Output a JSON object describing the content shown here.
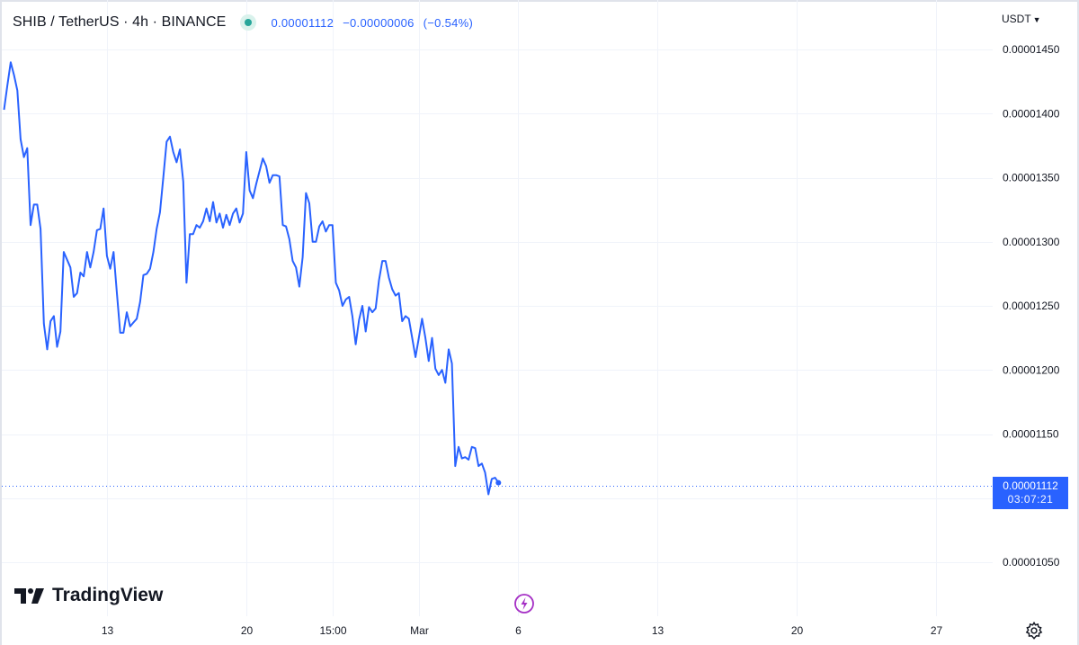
{
  "header": {
    "symbol_title": "SHIB / TetherUS · 4h · BINANCE",
    "last_price": "0.00001112",
    "change": "−0.00000006",
    "change_pct": "(−0.54%)",
    "status_color": "#26a69a"
  },
  "currency_menu": {
    "label": "USDT",
    "icon": "chevron-down-icon"
  },
  "price_tag": {
    "price": "0.00001112",
    "countdown": "03:07:21",
    "color": "#2962ff"
  },
  "logo": {
    "text": "TradingView"
  },
  "icons": {
    "flash": "lightning-icon",
    "settings": "gear-icon"
  },
  "chart_data": {
    "type": "line",
    "title": "",
    "xlabel": "",
    "ylabel": "",
    "line_color": "#2962ff",
    "ylim": [
      1.02e-05,
      1.46e-05
    ],
    "y_ticks": [
      "0.00001450",
      "0.00001400",
      "0.00001350",
      "0.00001300",
      "0.00001250",
      "0.00001200",
      "0.00001150",
      "0.00001050"
    ],
    "x_ticks": [
      {
        "label": "13",
        "index": 31
      },
      {
        "label": "20",
        "index": 73
      },
      {
        "label": "15:00",
        "index": 99
      },
      {
        "label": "Mar",
        "index": 125
      },
      {
        "label": "6",
        "index": 155
      },
      {
        "label": "13",
        "index": 197
      },
      {
        "label": "20",
        "index": 239
      },
      {
        "label": "27",
        "index": 281
      }
    ],
    "x_index_range": [
      -1,
      292
    ],
    "last_value": 1.112e-05,
    "grid": true,
    "series": [
      {
        "values": [
          1.403e-05,
          1.422e-05,
          1.44e-05,
          1.43e-05,
          1.418e-05,
          1.38e-05,
          1.366e-05,
          1.373e-05,
          1.313e-05,
          1.329e-05,
          1.329e-05,
          1.31e-05,
          1.236e-05,
          1.216e-05,
          1.238e-05,
          1.242e-05,
          1.218e-05,
          1.23e-05,
          1.292e-05,
          1.286e-05,
          1.28e-05,
          1.257e-05,
          1.26e-05,
          1.276e-05,
          1.273e-05,
          1.292e-05,
          1.28e-05,
          1.292e-05,
          1.309e-05,
          1.31e-05,
          1.326e-05,
          1.289e-05,
          1.279e-05,
          1.292e-05,
          1.26e-05,
          1.229e-05,
          1.229e-05,
          1.245e-05,
          1.234e-05,
          1.237e-05,
          1.24e-05,
          1.253e-05,
          1.274e-05,
          1.275e-05,
          1.279e-05,
          1.292e-05,
          1.31e-05,
          1.323e-05,
          1.35e-05,
          1.378e-05,
          1.382e-05,
          1.37e-05,
          1.362e-05,
          1.372e-05,
          1.347e-05,
          1.268e-05,
          1.306e-05,
          1.306e-05,
          1.313e-05,
          1.311e-05,
          1.316e-05,
          1.326e-05,
          1.316e-05,
          1.331e-05,
          1.315e-05,
          1.322e-05,
          1.311e-05,
          1.321e-05,
          1.313e-05,
          1.322e-05,
          1.326e-05,
          1.315e-05,
          1.322e-05,
          1.37e-05,
          1.34e-05,
          1.334e-05,
          1.345e-05,
          1.355e-05,
          1.365e-05,
          1.359e-05,
          1.346e-05,
          1.352e-05,
          1.352e-05,
          1.351e-05,
          1.313e-05,
          1.312e-05,
          1.302e-05,
          1.285e-05,
          1.28e-05,
          1.265e-05,
          1.288e-05,
          1.338e-05,
          1.33e-05,
          1.3e-05,
          1.3e-05,
          1.312e-05,
          1.316e-05,
          1.308e-05,
          1.313e-05,
          1.313e-05,
          1.268e-05,
          1.262e-05,
          1.25e-05,
          1.255e-05,
          1.257e-05,
          1.242e-05,
          1.22e-05,
          1.239e-05,
          1.25e-05,
          1.23e-05,
          1.249e-05,
          1.245e-05,
          1.248e-05,
          1.27e-05,
          1.285e-05,
          1.285e-05,
          1.272e-05,
          1.263e-05,
          1.258e-05,
          1.26e-05,
          1.238e-05,
          1.242e-05,
          1.24e-05,
          1.225e-05,
          1.21e-05,
          1.225e-05,
          1.24e-05,
          1.225e-05,
          1.207e-05,
          1.225e-05,
          1.201e-05,
          1.196e-05,
          1.2e-05,
          1.19e-05,
          1.216e-05,
          1.205e-05,
          1.125e-05,
          1.14e-05,
          1.131e-05,
          1.132e-05,
          1.13e-05,
          1.14e-05,
          1.139e-05,
          1.125e-05,
          1.127e-05,
          1.12e-05,
          1.103e-05,
          1.115e-05,
          1.116e-05,
          1.112e-05
        ]
      }
    ]
  }
}
